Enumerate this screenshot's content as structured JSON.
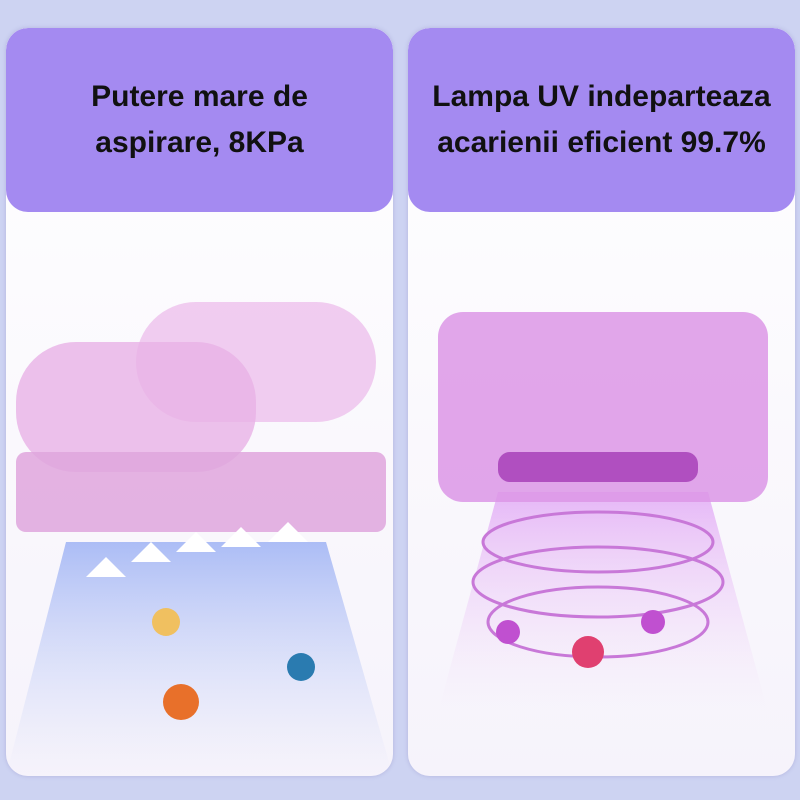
{
  "panels": [
    {
      "title": "Putere mare de aspirare, 8KPa",
      "image": "vacuum-suction-illustration"
    },
    {
      "title": "Lampa UV indeparteaza acarienii eficient 99.7%",
      "image": "uv-lamp-illustration"
    }
  ],
  "colors": {
    "background": "#cdd3f2",
    "header": "#a48af1",
    "device": "#e7a6e4"
  }
}
